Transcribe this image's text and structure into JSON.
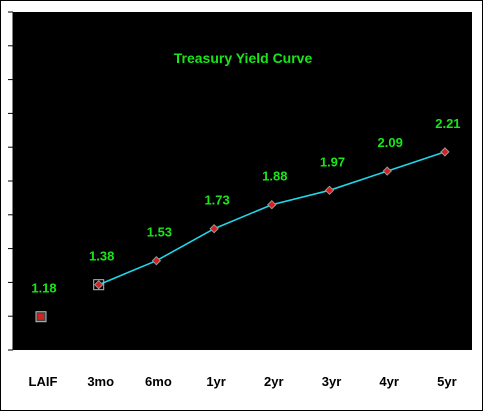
{
  "chart_data": {
    "type": "line",
    "title": "Treasury Yield Curve",
    "xlabel": "",
    "ylabel": "",
    "categories": [
      "LAIF",
      "3mo",
      "6mo",
      "1yr",
      "2yr",
      "3yr",
      "4yr",
      "5yr"
    ],
    "series": [
      {
        "values": [
          null,
          1.38,
          1.53,
          1.73,
          1.88,
          1.97,
          2.09,
          2.21
        ],
        "line_color": "#1fd6ea",
        "marker": "diamond",
        "marker_color": "#d62020"
      },
      {
        "values": [
          1.18,
          null,
          null,
          null,
          null,
          null,
          null,
          null
        ],
        "marker": "square",
        "marker_color": "#d62020"
      }
    ],
    "data_labels": [
      "1.18",
      "1.38",
      "1.53",
      "1.73",
      "1.88",
      "1.97",
      "2.09",
      "2.21"
    ],
    "ylim": [
      1.0,
      2.3
    ],
    "y_ticks": 10,
    "grid": false,
    "legend": "none",
    "colors": {
      "plot_background": "#000000",
      "text_accent": "#19e619",
      "axis": "#000000"
    }
  }
}
